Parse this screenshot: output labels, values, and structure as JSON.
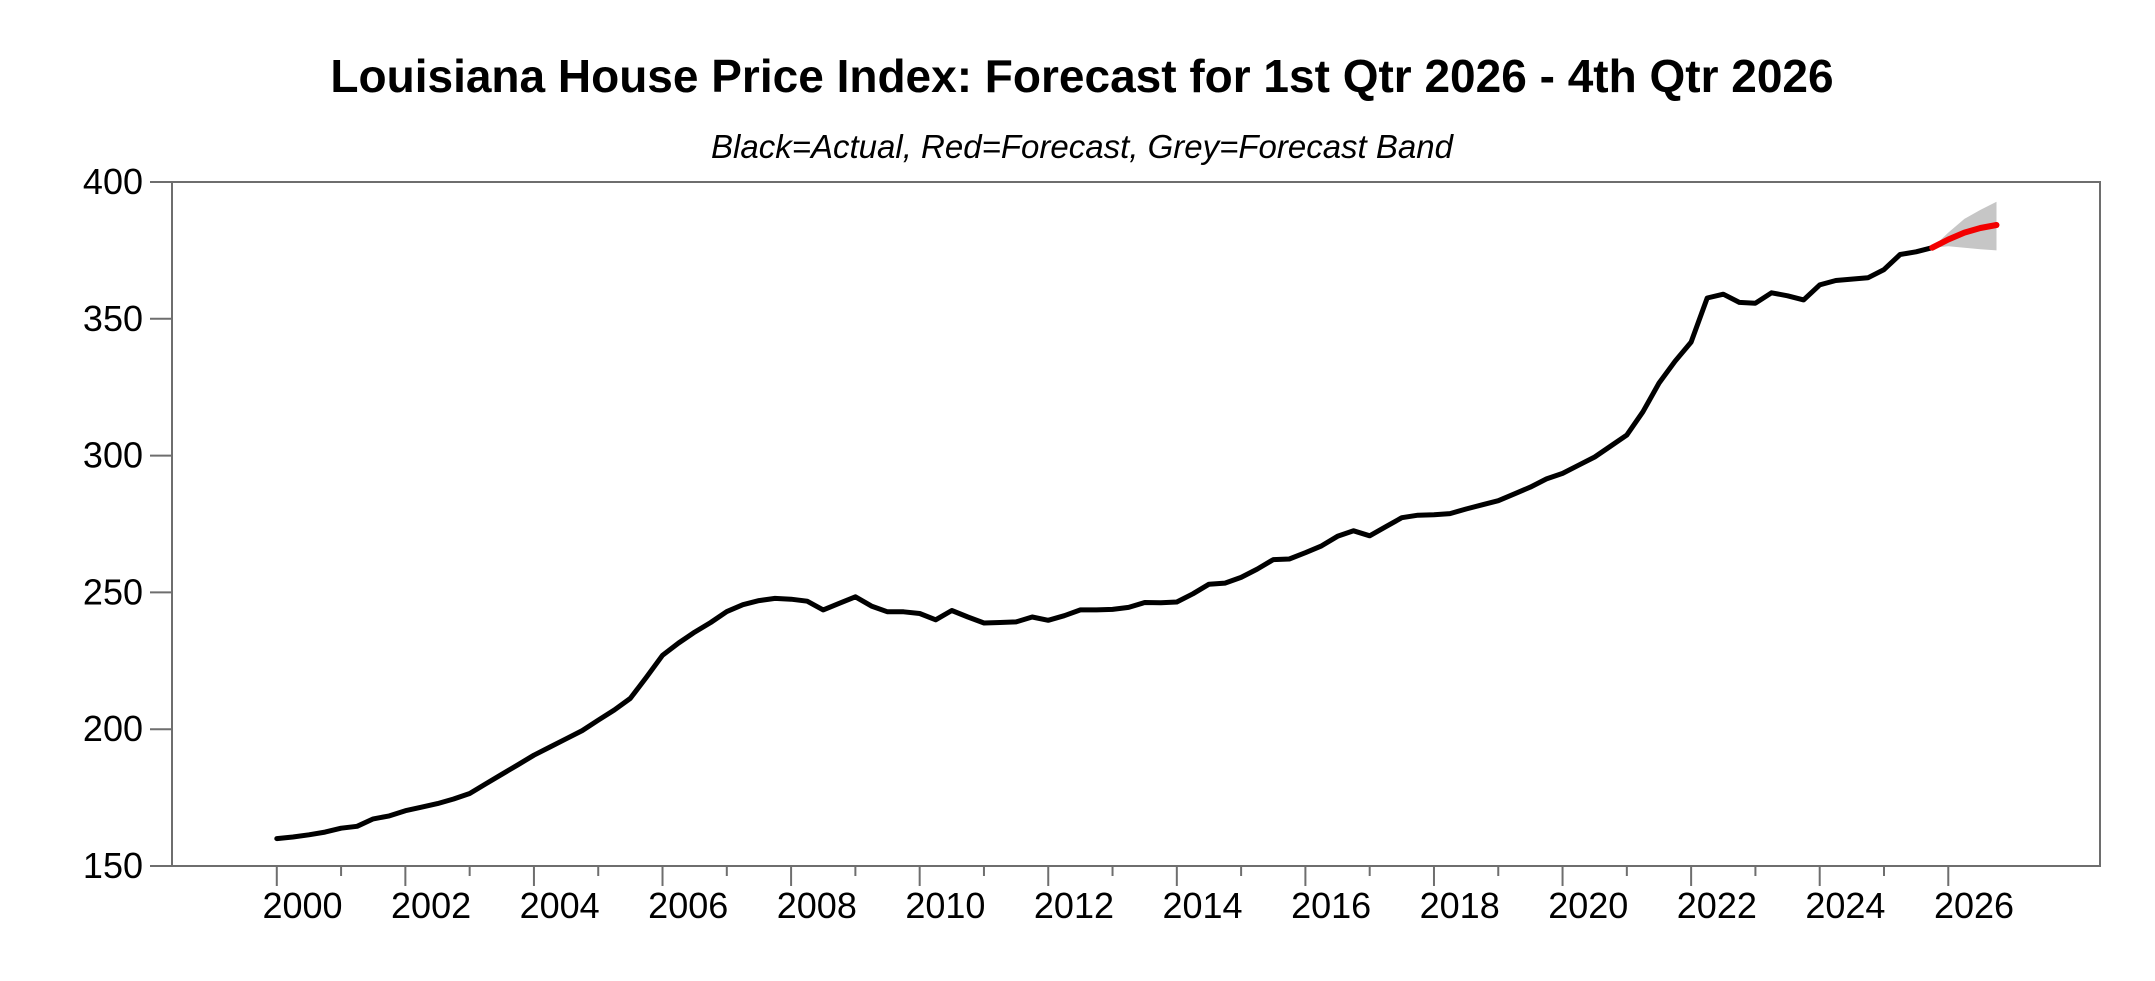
{
  "page": {
    "background": "#ffffff"
  },
  "chart_data": {
    "type": "line",
    "title": "Louisiana House Price Index: Forecast for 1st Qtr 2026 - 4th Qtr 2026",
    "subtitle": "Black=Actual, Red=Forecast, Grey=Forecast Band",
    "xlabel": "",
    "ylabel": "",
    "xlim": [
      1998.37,
      2028.36
    ],
    "ylim": [
      150,
      400
    ],
    "grid": false,
    "legend_position": "none (legend encoded in subtitle)",
    "y_ticks": [
      150,
      200,
      250,
      300,
      350,
      400
    ],
    "x_major_tick_years": [
      2000,
      2002,
      2004,
      2006,
      2008,
      2010,
      2012,
      2014,
      2016,
      2018,
      2020,
      2022,
      2024,
      2026
    ],
    "x_minor_tick_years": [
      2001,
      2003,
      2005,
      2007,
      2009,
      2011,
      2013,
      2015,
      2017,
      2019,
      2021,
      2023,
      2025
    ],
    "x_tick_labels": [
      "2000",
      "2002",
      "2004",
      "2006",
      "2008",
      "2010",
      "2012",
      "2014",
      "2016",
      "2018",
      "2020",
      "2022",
      "2024",
      "2026"
    ],
    "x_label_center_offset_years": 0.4,
    "colors": {
      "actual": "#000000",
      "forecast": "#f20000",
      "band": "#c6c6c6",
      "frame": "#6e6e6e"
    },
    "series": [
      {
        "name": "Actual",
        "color": "#000000",
        "frequency": "quarterly",
        "x_start": 2000.0,
        "x_step": 0.25,
        "values": [
          160.0,
          160.6,
          161.4,
          162.4,
          163.8,
          164.5,
          167.2,
          168.3,
          170.2,
          171.5,
          172.8,
          174.5,
          176.5,
          180.0,
          183.5,
          187.0,
          190.5,
          193.5,
          196.5,
          199.5,
          203.3,
          207.0,
          211.3,
          219.0,
          227.0,
          231.5,
          235.5,
          239.0,
          243.0,
          245.5,
          247.0,
          247.8,
          247.5,
          246.8,
          243.6,
          246.0,
          248.4,
          245.0,
          242.9,
          242.9,
          242.3,
          240.0,
          243.4,
          241.0,
          238.8,
          239.0,
          239.2,
          241.0,
          239.8,
          241.5,
          243.6,
          243.6,
          243.8,
          244.5,
          246.3,
          246.2,
          246.5,
          249.5,
          253.0,
          253.4,
          255.5,
          258.5,
          262.0,
          262.2,
          264.5,
          267.0,
          270.5,
          272.5,
          270.7,
          274.0,
          277.3,
          278.2,
          278.4,
          278.8,
          280.5,
          282.0,
          283.5,
          286.0,
          288.5,
          291.5,
          293.5,
          296.5,
          299.5,
          303.5,
          307.5,
          316.0,
          326.5,
          334.5,
          341.5,
          357.6,
          359.0,
          356.0,
          355.7,
          359.5,
          358.4,
          356.9,
          362.4,
          364.0,
          364.5,
          365.0,
          368.0,
          373.5,
          374.5,
          376.0
        ]
      },
      {
        "name": "Forecast",
        "color": "#f20000",
        "x": [
          2025.75,
          2026.0,
          2026.25,
          2026.5,
          2026.75
        ],
        "values": [
          376.0,
          379.0,
          381.5,
          383.2,
          384.3
        ]
      },
      {
        "name": "Forecast Band",
        "band": true,
        "color": "#c6c6c6",
        "x": [
          2025.75,
          2026.0,
          2026.25,
          2026.5,
          2026.75
        ],
        "upper": [
          376.0,
          381.5,
          386.5,
          389.8,
          392.8
        ],
        "lower": [
          376.0,
          376.5,
          376.0,
          375.4,
          375.0
        ]
      }
    ]
  }
}
